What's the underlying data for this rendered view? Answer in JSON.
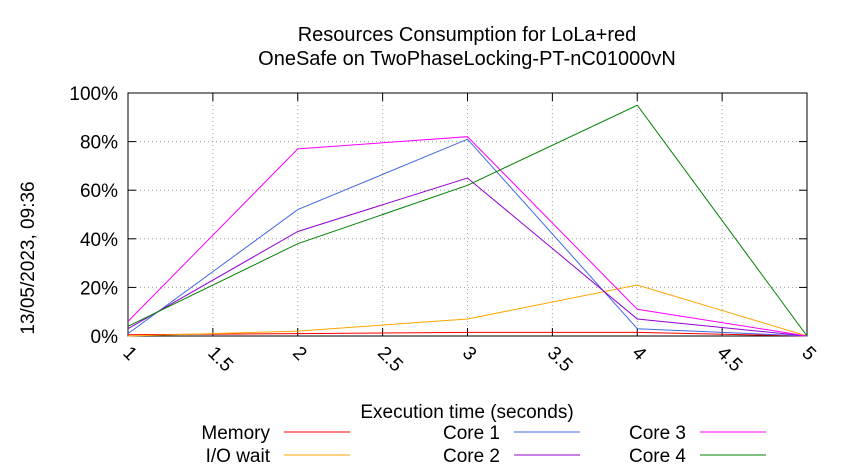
{
  "chart_data": {
    "type": "line",
    "title": [
      "Resources Consumption for LoLa+red",
      "OneSafe on TwoPhaseLocking-PT-nC01000vN"
    ],
    "side_label": "13/05/2023, 09:36",
    "xlabel": "Execution time (seconds)",
    "ylabel": "",
    "xlim": [
      1,
      5
    ],
    "ylim": [
      0,
      100
    ],
    "xticks": [
      1,
      1.5,
      2,
      2.5,
      3,
      3.5,
      4,
      4.5,
      5
    ],
    "xtick_labels": [
      "1",
      "1.5",
      "2",
      "2.5",
      "3",
      "3.5",
      "4",
      "4.5",
      "5"
    ],
    "yticks": [
      0,
      20,
      40,
      60,
      80,
      100
    ],
    "ytick_labels": [
      "0%",
      "20%",
      "40%",
      "60%",
      "80%",
      "100%"
    ],
    "grid": true,
    "legend_position": "bottom",
    "x": [
      1,
      2,
      3,
      4,
      5
    ],
    "series": [
      {
        "name": "Memory",
        "color": "#ff0000",
        "values": [
          0.5,
          1,
          1.5,
          1.5,
          0
        ]
      },
      {
        "name": "I/O wait",
        "color": "#ffa500",
        "values": [
          0,
          2,
          7,
          21,
          0
        ]
      },
      {
        "name": "Core 1",
        "color": "#4169e1",
        "values": [
          1,
          52,
          81,
          3,
          0
        ]
      },
      {
        "name": "Core 2",
        "color": "#9400d3",
        "values": [
          3,
          43,
          65,
          7,
          0
        ]
      },
      {
        "name": "Core 3",
        "color": "#ff00ff",
        "values": [
          6,
          77,
          82,
          11,
          0
        ]
      },
      {
        "name": "Core 4",
        "color": "#008000",
        "values": [
          4,
          38,
          62,
          95,
          0
        ]
      }
    ]
  }
}
